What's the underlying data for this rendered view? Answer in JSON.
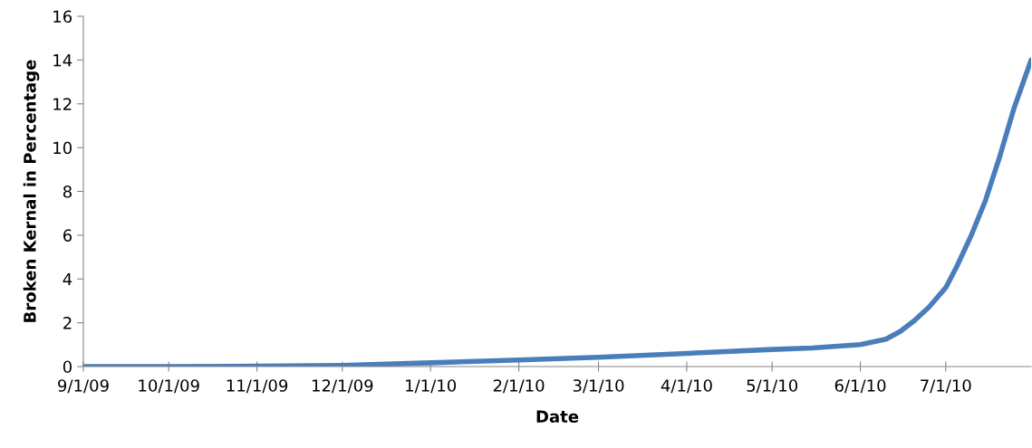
{
  "chart_data": {
    "type": "line",
    "xlabel": "Date",
    "ylabel": "Broken Kernal in Percentage",
    "x": [
      "2009-09-01",
      "2009-10-01",
      "2009-11-01",
      "2009-12-01",
      "2010-01-01",
      "2010-02-01",
      "2010-03-01",
      "2010-04-01",
      "2010-05-01",
      "2010-05-15",
      "2010-06-01",
      "2010-06-10",
      "2010-06-15",
      "2010-06-20",
      "2010-06-25",
      "2010-07-01",
      "2010-07-05",
      "2010-07-10",
      "2010-07-15",
      "2010-07-20",
      "2010-07-25",
      "2010-07-31"
    ],
    "series": [
      {
        "color": "#4a7ebb",
        "values": [
          0,
          0,
          0.02,
          0.05,
          0.17,
          0.3,
          0.42,
          0.6,
          0.78,
          0.85,
          1.0,
          1.25,
          1.6,
          2.1,
          2.7,
          3.6,
          4.6,
          6.0,
          7.6,
          9.6,
          11.8,
          14.0
        ]
      }
    ],
    "xlim": [
      "2009-09-01",
      "2010-07-31"
    ],
    "xticks": [
      {
        "value": "2009-09-01",
        "label": "9/1/09"
      },
      {
        "value": "2009-10-01",
        "label": "10/1/09"
      },
      {
        "value": "2009-11-01",
        "label": "11/1/09"
      },
      {
        "value": "2009-12-01",
        "label": "12/1/09"
      },
      {
        "value": "2010-01-01",
        "label": "1/1/10"
      },
      {
        "value": "2010-02-01",
        "label": "2/1/10"
      },
      {
        "value": "2010-03-01",
        "label": "3/1/10"
      },
      {
        "value": "2010-04-01",
        "label": "4/1/10"
      },
      {
        "value": "2010-05-01",
        "label": "5/1/10"
      },
      {
        "value": "2010-06-01",
        "label": "6/1/10"
      },
      {
        "value": "2010-07-01",
        "label": "7/1/10"
      }
    ],
    "ylim": [
      0,
      16
    ],
    "yticks": [
      0,
      2,
      4,
      6,
      8,
      10,
      12,
      14,
      16
    ],
    "grid": false,
    "legend": false,
    "marker": "none",
    "line_style": "solid"
  }
}
